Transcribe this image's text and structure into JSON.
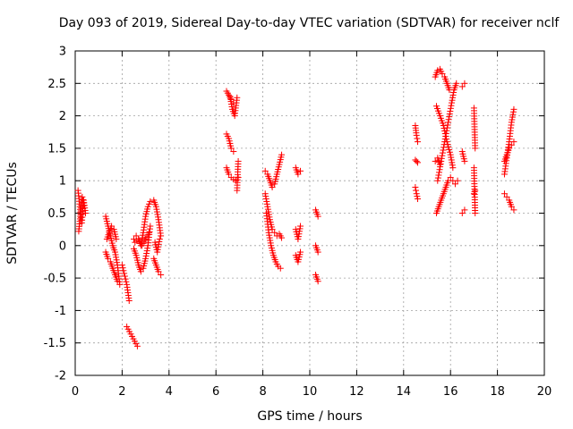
{
  "chart_data": {
    "type": "scatter",
    "title": "Day 093 of 2019, Sidereal Day-to-day VTEC variation (SDTVAR) for receiver nclf",
    "xlabel": "GPS time / hours",
    "ylabel": "SDTVAR / TECUs",
    "xlim": [
      0,
      20
    ],
    "ylim": [
      -2,
      3
    ],
    "xticks": [
      0,
      2,
      4,
      6,
      8,
      10,
      12,
      14,
      16,
      18,
      20
    ],
    "yticks": [
      -2,
      -1.5,
      -1,
      -0.5,
      0,
      0.5,
      1,
      1.5,
      2,
      2.5,
      3
    ],
    "xtick_labels": [
      "0",
      "2",
      "4",
      "6",
      "8",
      "10",
      "12",
      "14",
      "16",
      "18",
      "20"
    ],
    "ytick_labels": [
      "-2",
      "-1.5",
      "-1",
      "-0.5",
      "0",
      "0.5",
      "1",
      "1.5",
      "2",
      "2.5",
      "3"
    ],
    "grid": true,
    "marker": "+",
    "color": "#ff0000",
    "series": [
      {
        "name": "SDTVAR",
        "segments": [
          {
            "x": [
              0.12,
              0.2,
              0.28,
              0.36,
              0.44
            ],
            "y": [
              0.85,
              0.6,
              0.35,
              0.7,
              0.5
            ]
          },
          {
            "x": [
              0.15,
              0.22,
              0.3,
              0.38
            ],
            "y": [
              0.22,
              0.45,
              0.75,
              0.62
            ]
          },
          {
            "x": [
              1.3,
              1.4,
              1.5,
              1.6,
              1.7,
              1.8,
              1.9
            ],
            "y": [
              0.45,
              0.3,
              0.15,
              0.0,
              -0.1,
              -0.3,
              -0.6
            ]
          },
          {
            "x": [
              1.3,
              1.4,
              1.5,
              1.6,
              1.7,
              1.8
            ],
            "y": [
              -0.1,
              -0.2,
              -0.25,
              -0.35,
              -0.45,
              -0.55
            ]
          },
          {
            "x": [
              1.35,
              1.45,
              1.55,
              1.65,
              1.75
            ],
            "y": [
              0.1,
              0.2,
              0.3,
              0.25,
              0.1
            ]
          },
          {
            "x": [
              2.0,
              2.2,
              2.3
            ],
            "y": [
              -0.3,
              -0.6,
              -0.85
            ]
          },
          {
            "x": [
              2.2,
              2.65
            ],
            "y": [
              -1.25,
              -1.55
            ]
          },
          {
            "x": [
              2.5,
              2.6,
              2.7,
              2.8,
              2.9,
              3.0,
              3.1,
              3.2
            ],
            "y": [
              0.1,
              0.15,
              0.1,
              0.0,
              0.2,
              0.45,
              0.6,
              0.68
            ]
          },
          {
            "x": [
              2.5,
              2.6,
              2.7,
              2.8,
              2.9,
              3.0,
              3.1,
              3.2
            ],
            "y": [
              -0.05,
              -0.15,
              -0.3,
              -0.4,
              -0.35,
              -0.2,
              0.0,
              0.3
            ]
          },
          {
            "x": [
              2.55,
              2.7,
              2.85,
              3.0,
              3.15
            ],
            "y": [
              0.05,
              0.1,
              0.0,
              0.1,
              0.2
            ]
          },
          {
            "x": [
              3.35,
              3.45,
              3.55,
              3.65
            ],
            "y": [
              0.7,
              0.6,
              0.4,
              0.15
            ]
          },
          {
            "x": [
              3.35,
              3.45,
              3.55,
              3.65
            ],
            "y": [
              -0.2,
              -0.3,
              -0.4,
              -0.45
            ]
          },
          {
            "x": [
              3.4,
              3.5,
              3.6
            ],
            "y": [
              0.05,
              -0.1,
              0.1
            ]
          },
          {
            "x": [
              6.45,
              6.55,
              6.65,
              6.75
            ],
            "y": [
              2.38,
              2.32,
              2.25,
              2.2
            ]
          },
          {
            "x": [
              6.6,
              6.7,
              6.8,
              6.9
            ],
            "y": [
              2.3,
              2.1,
              2.0,
              2.28
            ]
          },
          {
            "x": [
              6.45,
              6.55,
              6.65,
              6.75
            ],
            "y": [
              1.72,
              1.65,
              1.5,
              1.45
            ]
          },
          {
            "x": [
              6.45,
              6.55,
              6.65,
              6.75,
              6.85,
              6.95
            ],
            "y": [
              1.2,
              1.1,
              1.05,
              1.02,
              1.0,
              1.05
            ]
          },
          {
            "x": [
              6.9,
              6.95
            ],
            "y": [
              0.85,
              1.3
            ]
          },
          {
            "x": [
              8.1,
              8.2,
              8.3,
              8.4,
              8.5,
              8.6,
              8.7,
              8.8
            ],
            "y": [
              1.15,
              1.1,
              1.0,
              0.9,
              0.95,
              1.1,
              1.25,
              1.4
            ]
          },
          {
            "x": [
              8.1,
              8.2,
              8.3,
              8.4,
              8.5,
              8.6,
              8.7,
              8.8
            ],
            "y": [
              0.8,
              0.6,
              0.4,
              0.25,
              0.2,
              0.15,
              0.18,
              0.12
            ]
          },
          {
            "x": [
              8.15,
              8.25,
              8.35,
              8.45,
              8.55,
              8.65,
              8.75
            ],
            "y": [
              0.5,
              0.2,
              0.0,
              -0.15,
              -0.25,
              -0.32,
              -0.35
            ]
          },
          {
            "x": [
              9.4,
              9.5,
              9.6
            ],
            "y": [
              1.2,
              1.1,
              1.15
            ]
          },
          {
            "x": [
              9.4,
              9.5,
              9.6
            ],
            "y": [
              0.25,
              0.1,
              0.3
            ]
          },
          {
            "x": [
              9.4,
              9.5,
              9.6
            ],
            "y": [
              -0.15,
              -0.25,
              -0.1
            ]
          },
          {
            "x": [
              10.25,
              10.35
            ],
            "y": [
              0.55,
              0.45
            ]
          },
          {
            "x": [
              10.25,
              10.35
            ],
            "y": [
              0.0,
              -0.1
            ]
          },
          {
            "x": [
              10.25,
              10.35
            ],
            "y": [
              -0.45,
              -0.55
            ]
          },
          {
            "x": [
              14.5,
              14.55,
              14.6
            ],
            "y": [
              1.85,
              1.7,
              1.6
            ]
          },
          {
            "x": [
              14.5,
              14.55,
              14.6
            ],
            "y": [
              1.32,
              1.3,
              1.28
            ]
          },
          {
            "x": [
              14.5,
              14.55,
              14.6
            ],
            "y": [
              0.9,
              0.8,
              0.72
            ]
          },
          {
            "x": [
              15.35,
              15.45,
              15.55,
              15.65,
              15.75,
              15.85,
              15.95
            ],
            "y": [
              2.6,
              2.7,
              2.72,
              2.65,
              2.6,
              2.5,
              2.4
            ]
          },
          {
            "x": [
              15.4,
              15.55,
              15.7,
              15.85,
              16.0,
              16.1
            ],
            "y": [
              2.15,
              2.0,
              1.85,
              1.6,
              1.4,
              1.2
            ]
          },
          {
            "x": [
              15.45,
              15.6,
              15.75,
              15.9,
              16.05,
              16.15,
              16.25
            ],
            "y": [
              1.0,
              1.3,
              1.6,
              1.9,
              2.2,
              2.4,
              2.5
            ]
          },
          {
            "x": [
              15.4,
              15.5,
              15.6,
              15.7,
              15.8,
              15.9,
              16.0
            ],
            "y": [
              0.5,
              0.6,
              0.7,
              0.8,
              0.9,
              1.0,
              1.05
            ]
          },
          {
            "x": [
              16.1,
              16.2,
              16.3
            ],
            "y": [
              1.0,
              0.95,
              1.0
            ]
          },
          {
            "x": [
              15.35,
              15.45,
              15.55
            ],
            "y": [
              1.3,
              1.35,
              1.25
            ]
          },
          {
            "x": [
              16.5,
              16.6
            ],
            "y": [
              2.45,
              2.5
            ]
          },
          {
            "x": [
              16.5,
              16.6
            ],
            "y": [
              1.45,
              1.3
            ]
          },
          {
            "x": [
              16.5,
              16.6
            ],
            "y": [
              0.5,
              0.55
            ]
          },
          {
            "x": [
              17.0,
              17.05
            ],
            "y": [
              2.12,
              1.5
            ]
          },
          {
            "x": [
              17.0,
              17.05
            ],
            "y": [
              1.2,
              0.5
            ]
          },
          {
            "x": [
              17.0,
              17.05
            ],
            "y": [
              0.8,
              0.85
            ]
          },
          {
            "x": [
              18.3,
              18.4,
              18.5,
              18.6,
              18.7
            ],
            "y": [
              1.1,
              1.35,
              1.6,
              1.9,
              2.1
            ]
          },
          {
            "x": [
              18.3,
              18.4,
              18.5,
              18.6,
              18.7
            ],
            "y": [
              1.3,
              1.4,
              1.5,
              1.55,
              1.6
            ]
          },
          {
            "x": [
              18.3,
              18.4,
              18.5,
              18.6,
              18.7
            ],
            "y": [
              0.8,
              0.75,
              0.7,
              0.6,
              0.55
            ]
          }
        ]
      }
    ]
  }
}
